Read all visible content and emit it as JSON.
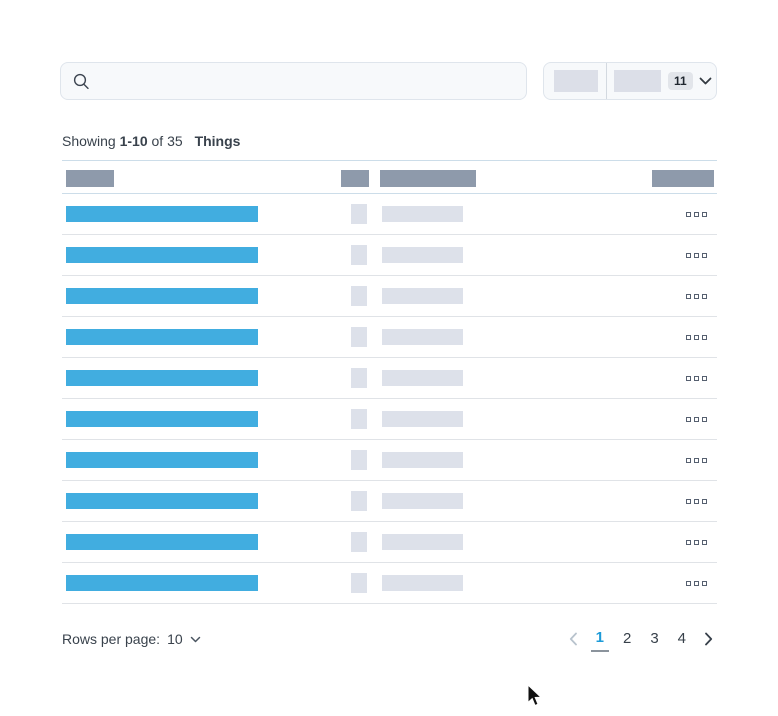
{
  "search": {
    "value": "",
    "placeholder": "",
    "icon": "search-icon"
  },
  "filter_control": {
    "badge_count": "11",
    "icon": "chevron-down-icon"
  },
  "status": {
    "showing_label": "Showing",
    "range": "1-10",
    "of_label": "of",
    "total": "35",
    "entity_label": "Things"
  },
  "table": {
    "row_count": 10,
    "columns": 4,
    "row_menu_icon": "ellipsis-squares-icon"
  },
  "pagination": {
    "rows_per_page_label": "Rows per page:",
    "rows_per_page_value": "10",
    "rows_per_page_icon": "chevron-down-icon",
    "prev_icon": "chevron-left-icon",
    "next_icon": "chevron-right-icon",
    "pages": [
      "1",
      "2",
      "3",
      "4"
    ],
    "current_page": "1"
  },
  "colors": {
    "accent_blue": "#41ade0",
    "header_gray": "#8e9aab",
    "placeholder_gray": "#dde1ea",
    "active_page_blue": "#1d9bd8",
    "panel_background": "#f7f9fb",
    "panel_border": "#dfe5ec"
  }
}
